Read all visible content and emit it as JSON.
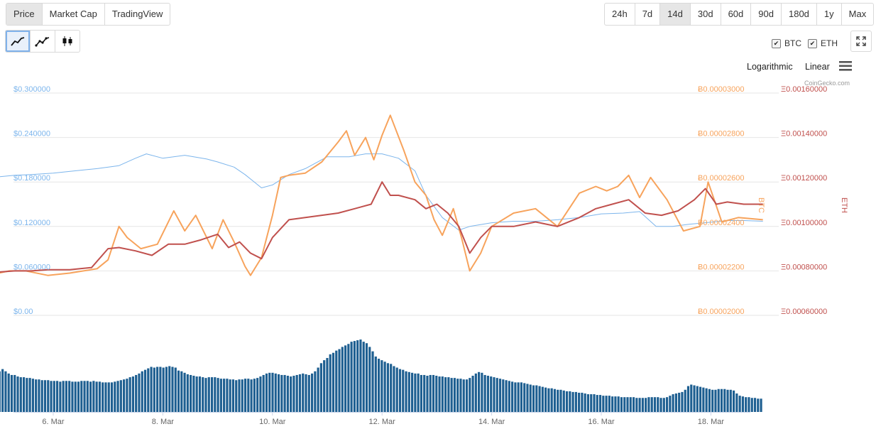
{
  "tabs": [
    {
      "label": "Price",
      "active": true
    },
    {
      "label": "Market Cap",
      "active": false
    },
    {
      "label": "TradingView",
      "active": false
    }
  ],
  "ranges": [
    {
      "label": "24h",
      "active": false
    },
    {
      "label": "7d",
      "active": false
    },
    {
      "label": "14d",
      "active": true
    },
    {
      "label": "30d",
      "active": false
    },
    {
      "label": "60d",
      "active": false
    },
    {
      "label": "90d",
      "active": false
    },
    {
      "label": "180d",
      "active": false
    },
    {
      "label": "1y",
      "active": false
    },
    {
      "label": "Max",
      "active": false
    }
  ],
  "chart_types": [
    {
      "icon": "line-chart-icon",
      "active": true
    },
    {
      "icon": "line-markers-chart-icon",
      "active": false
    },
    {
      "icon": "candlestick-chart-icon",
      "active": false
    }
  ],
  "legend": [
    {
      "label": "BTC",
      "checked": true
    },
    {
      "label": "ETH",
      "checked": true
    }
  ],
  "scale_options": {
    "log": "Logarithmic",
    "linear": "Linear"
  },
  "watermark": "CoinGecko.com",
  "colors": {
    "usd": "#7cb5ec",
    "btc": "#f7a35c",
    "eth": "#c0504d",
    "volume": "#1e5f91",
    "grid": "#e6e6e6"
  },
  "chart_data": {
    "type": "line",
    "x_ticks": [
      "6. Mar",
      "8. Mar",
      "10. Mar",
      "12. Mar",
      "14. Mar",
      "16. Mar",
      "18. Mar"
    ],
    "axes": {
      "usd": {
        "ticks": [
          "$0.300000",
          "$0.240000",
          "$0.180000",
          "$0.120000",
          "$0.060000",
          "$0.00"
        ],
        "ylim": [
          0,
          0.3
        ]
      },
      "btc": {
        "title": "BTC",
        "ticks": [
          "Ƀ0.00003000",
          "Ƀ0.00002800",
          "Ƀ0.00002600",
          "Ƀ0.00002400",
          "Ƀ0.00002200",
          "Ƀ0.00002000"
        ],
        "ylim": [
          2e-05,
          3e-05
        ]
      },
      "eth": {
        "title": "ETH",
        "ticks": [
          "Ξ0.00160000",
          "Ξ0.00140000",
          "Ξ0.00120000",
          "Ξ0.00100000",
          "Ξ0.00080000",
          "Ξ0.00060000"
        ],
        "ylim": [
          0.0006,
          0.0016
        ]
      }
    },
    "x_range_days": [
      5.0,
      18.95
    ],
    "series": [
      {
        "key": "usd",
        "x": [
          5.0,
          5.3,
          5.6,
          6.0,
          6.4,
          6.8,
          7.2,
          7.5,
          7.7,
          8.0,
          8.4,
          8.8,
          9.0,
          9.3,
          9.5,
          9.8,
          10.0,
          10.3,
          10.6,
          11.0,
          11.4,
          11.7,
          12.0,
          12.3,
          12.6,
          12.8,
          13.1,
          13.4,
          13.6,
          14.0,
          14.4,
          14.8,
          15.2,
          15.6,
          16.0,
          16.4,
          16.7,
          17.0,
          17.3,
          17.6,
          17.9,
          18.3,
          18.6,
          18.95
        ],
        "values": [
          0.187,
          0.189,
          0.19,
          0.192,
          0.195,
          0.198,
          0.202,
          0.212,
          0.218,
          0.212,
          0.216,
          0.211,
          0.207,
          0.2,
          0.19,
          0.172,
          0.176,
          0.19,
          0.198,
          0.214,
          0.214,
          0.218,
          0.218,
          0.212,
          0.195,
          0.162,
          0.132,
          0.115,
          0.12,
          0.125,
          0.127,
          0.127,
          0.129,
          0.132,
          0.137,
          0.138,
          0.14,
          0.12,
          0.12,
          0.123,
          0.125,
          0.128,
          0.128,
          0.127
        ]
      },
      {
        "key": "btc",
        "x": [
          5.0,
          5.2,
          5.5,
          5.9,
          6.3,
          6.8,
          7.0,
          7.2,
          7.35,
          7.6,
          7.9,
          8.2,
          8.4,
          8.6,
          8.9,
          9.1,
          9.3,
          9.5,
          9.6,
          9.8,
          10.0,
          10.15,
          10.3,
          10.6,
          10.9,
          11.2,
          11.35,
          11.5,
          11.7,
          11.85,
          12.0,
          12.15,
          12.4,
          12.6,
          12.8,
          12.95,
          13.1,
          13.3,
          13.45,
          13.6,
          13.8,
          14.0,
          14.4,
          14.8,
          15.2,
          15.6,
          15.9,
          16.1,
          16.3,
          16.5,
          16.7,
          16.9,
          17.2,
          17.5,
          17.8,
          17.95,
          18.2,
          18.5,
          18.95
        ],
        "values": [
          2.19e-05,
          2.2e-05,
          2.2e-05,
          2.18e-05,
          2.19e-05,
          2.21e-05,
          2.25e-05,
          2.4e-05,
          2.35e-05,
          2.3e-05,
          2.32e-05,
          2.47e-05,
          2.38e-05,
          2.45e-05,
          2.3e-05,
          2.43e-05,
          2.33e-05,
          2.22e-05,
          2.18e-05,
          2.26e-05,
          2.45e-05,
          2.62e-05,
          2.63e-05,
          2.64e-05,
          2.69e-05,
          2.78e-05,
          2.83e-05,
          2.72e-05,
          2.8e-05,
          2.7e-05,
          2.81e-05,
          2.9e-05,
          2.74e-05,
          2.6e-05,
          2.54e-05,
          2.43e-05,
          2.36e-05,
          2.48e-05,
          2.35e-05,
          2.2e-05,
          2.28e-05,
          2.4e-05,
          2.46e-05,
          2.48e-05,
          2.4e-05,
          2.55e-05,
          2.58e-05,
          2.56e-05,
          2.58e-05,
          2.63e-05,
          2.53e-05,
          2.62e-05,
          2.52e-05,
          2.38e-05,
          2.4e-05,
          2.6e-05,
          2.42e-05,
          2.44e-05,
          2.43e-05
        ]
      },
      {
        "key": "eth",
        "x": [
          5.0,
          5.3,
          5.6,
          5.9,
          6.3,
          6.7,
          7.0,
          7.2,
          7.5,
          7.8,
          8.1,
          8.4,
          8.7,
          9.0,
          9.2,
          9.4,
          9.6,
          9.8,
          10.0,
          10.3,
          10.6,
          10.9,
          11.2,
          11.5,
          11.8,
          12.0,
          12.15,
          12.3,
          12.6,
          12.8,
          13.0,
          13.2,
          13.4,
          13.6,
          13.8,
          14.0,
          14.4,
          14.8,
          15.2,
          15.6,
          15.9,
          16.2,
          16.5,
          16.8,
          17.1,
          17.4,
          17.7,
          17.9,
          18.1,
          18.3,
          18.6,
          18.95
        ],
        "values": [
          0.000795,
          0.0008,
          0.0008,
          0.000805,
          0.000805,
          0.000815,
          0.0009,
          0.000905,
          0.00089,
          0.00087,
          0.00092,
          0.00092,
          0.00094,
          0.000965,
          0.000905,
          0.00093,
          0.00088,
          0.000855,
          0.00095,
          0.00103,
          0.00104,
          0.00105,
          0.00106,
          0.00108,
          0.0011,
          0.0012,
          0.00114,
          0.00114,
          0.00112,
          0.00108,
          0.0011,
          0.00106,
          0.001,
          0.00088,
          0.00095,
          0.001,
          0.001,
          0.00102,
          0.001,
          0.00104,
          0.00108,
          0.0011,
          0.00112,
          0.00106,
          0.00105,
          0.00107,
          0.00112,
          0.00117,
          0.0011,
          0.00111,
          0.0011,
          0.0011
        ]
      }
    ],
    "volume": {
      "x_start_day": 5.0,
      "x_end_day": 18.95,
      "values": [
        55,
        58,
        55,
        52,
        50,
        50,
        48,
        47,
        47,
        46,
        46,
        45,
        44,
        44,
        43,
        43,
        43,
        42,
        42,
        42,
        41,
        42,
        42,
        42,
        41,
        41,
        41,
        42,
        42,
        42,
        41,
        42,
        41,
        41,
        40,
        40,
        40,
        40,
        41,
        42,
        43,
        44,
        45,
        47,
        48,
        50,
        52,
        55,
        57,
        59,
        61,
        60,
        61,
        61,
        60,
        61,
        62,
        61,
        60,
        56,
        55,
        53,
        51,
        50,
        49,
        48,
        48,
        47,
        46,
        47,
        47,
        47,
        46,
        45,
        45,
        45,
        44,
        44,
        43,
        44,
        44,
        45,
        45,
        44,
        45,
        46,
        48,
        50,
        52,
        53,
        53,
        52,
        51,
        50,
        50,
        49,
        48,
        49,
        50,
        51,
        52,
        51,
        50,
        52,
        55,
        60,
        66,
        70,
        73,
        78,
        80,
        83,
        85,
        88,
        90,
        92,
        95,
        96,
        97,
        98,
        95,
        93,
        88,
        82,
        75,
        72,
        70,
        68,
        66,
        65,
        62,
        60,
        58,
        57,
        55,
        54,
        53,
        52,
        52,
        50,
        50,
        49,
        50,
        50,
        49,
        48,
        48,
        47,
        47,
        46,
        46,
        45,
        45,
        44,
        44,
        46,
        49,
        52,
        54,
        53,
        50,
        49,
        48,
        47,
        46,
        45,
        44,
        43,
        42,
        41,
        40,
        40,
        40,
        39,
        38,
        37,
        36,
        36,
        35,
        34,
        33,
        32,
        32,
        31,
        30,
        30,
        29,
        28,
        28,
        27,
        27,
        26,
        26,
        25,
        24,
        24,
        24,
        23,
        23,
        22,
        22,
        22,
        21,
        21,
        21,
        20,
        20,
        20,
        20,
        20,
        19,
        19,
        19,
        19,
        20,
        20,
        20,
        20,
        19,
        19,
        20,
        22,
        24,
        25,
        26,
        27,
        30,
        35,
        37,
        36,
        35,
        34,
        33,
        32,
        31,
        30,
        30,
        31,
        31,
        31,
        30,
        30,
        29,
        25,
        22,
        21,
        20,
        20,
        19,
        19,
        18,
        18
      ]
    }
  }
}
